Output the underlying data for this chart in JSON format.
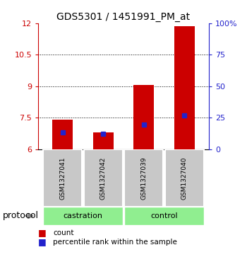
{
  "title": "GDS5301 / 1451991_PM_at",
  "samples": [
    "GSM1327041",
    "GSM1327042",
    "GSM1327039",
    "GSM1327040"
  ],
  "groups": [
    "castration",
    "castration",
    "control",
    "control"
  ],
  "group_labels": [
    "castration",
    "control"
  ],
  "red_values": [
    7.4,
    6.8,
    9.05,
    11.85
  ],
  "blue_values": [
    6.78,
    6.72,
    7.18,
    7.62
  ],
  "ylim_left": [
    6,
    12
  ],
  "ylim_right": [
    0,
    100
  ],
  "yticks_left": [
    6,
    7.5,
    9,
    10.5,
    12
  ],
  "ytick_labels_left": [
    "6",
    "7.5",
    "9",
    "10.5",
    "12"
  ],
  "yticks_right": [
    0,
    25,
    50,
    75,
    100
  ],
  "ytick_labels_right": [
    "0",
    "25",
    "50",
    "75",
    "100%"
  ],
  "dotted_lines": [
    7.5,
    9,
    10.5
  ],
  "bar_bottom": 6,
  "bar_width": 0.5,
  "bar_color_red": "#cc0000",
  "bar_color_blue": "#2222cc",
  "gray_box_color": "#c8c8c8",
  "green_box_color": "#90EE90",
  "label_count": "count",
  "label_percentile": "percentile rank within the sample",
  "protocol_label": "protocol"
}
